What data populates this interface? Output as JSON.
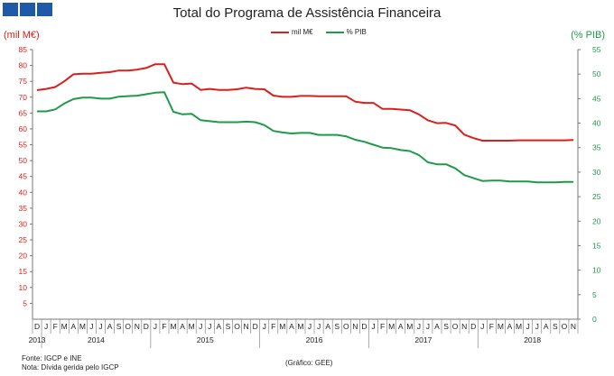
{
  "title": "Total do Programa de Assistência Financeira",
  "colors": {
    "logo": "#1f5aa8",
    "series1": "#d9201c",
    "series2": "#1f9a48"
  },
  "footnotes": {
    "source": "Fonte: IGCP e INE",
    "note": "Nota: Dívida gerida pelo IGCP",
    "credit": "(Gráfico: GEE)"
  },
  "chart_data": {
    "type": "line",
    "title": "Total do Programa de Assistência Financeira",
    "ylabel_left": "(mil M€)",
    "ylabel_right": "(% PIB)",
    "ylim_left": [
      0,
      85
    ],
    "ylim_right": [
      0,
      55
    ],
    "yticks_left": [
      "5",
      "10",
      "15",
      "20",
      "25",
      "30",
      "35",
      "40",
      "45",
      "50",
      "55",
      "60",
      "65",
      "70",
      "75",
      "80",
      "85"
    ],
    "yticks_right": [
      "0",
      "5",
      "10",
      "15",
      "20",
      "25",
      "30",
      "35",
      "40",
      "45",
      "50",
      "55"
    ],
    "months": [
      "D",
      "J",
      "F",
      "M",
      "A",
      "M",
      "J",
      "J",
      "A",
      "S",
      "O",
      "N",
      "D",
      "J",
      "F",
      "M",
      "A",
      "M",
      "J",
      "J",
      "A",
      "S",
      "O",
      "N",
      "D",
      "J",
      "F",
      "M",
      "A",
      "M",
      "J",
      "J",
      "A",
      "S",
      "O",
      "N",
      "D",
      "J",
      "F",
      "M",
      "A",
      "M",
      "J",
      "J",
      "A",
      "S",
      "O",
      "N",
      "D",
      "J",
      "F",
      "M",
      "A",
      "M",
      "J",
      "J",
      "A",
      "S",
      "O",
      "N"
    ],
    "years": [
      {
        "label": "2013",
        "index": 0
      },
      {
        "label": "2014",
        "index": 6.5
      },
      {
        "label": "2015",
        "index": 18.5
      },
      {
        "label": "2016",
        "index": 30.5
      },
      {
        "label": "2017",
        "index": 42.5
      },
      {
        "label": "2018",
        "index": 54.5
      }
    ],
    "legend_position": "top-center",
    "series": [
      {
        "name": "mil M€",
        "axis": "left",
        "values": [
          72.2,
          72.6,
          73.2,
          75.0,
          77.2,
          77.4,
          77.4,
          77.7,
          77.9,
          78.4,
          78.4,
          78.7,
          79.2,
          80.4,
          80.4,
          74.6,
          74.1,
          74.3,
          72.3,
          72.6,
          72.3,
          72.3,
          72.5,
          73.0,
          72.6,
          72.5,
          70.5,
          70.1,
          70.1,
          70.4,
          70.4,
          70.3,
          70.3,
          70.3,
          70.3,
          68.6,
          68.2,
          68.2,
          66.3,
          66.3,
          66.1,
          65.9,
          64.6,
          62.7,
          61.8,
          61.9,
          61.1,
          58.2,
          57.1,
          56.3,
          56.3,
          56.3,
          56.3,
          56.4,
          56.4,
          56.4,
          56.4,
          56.4,
          56.4,
          56.5
        ]
      },
      {
        "name": "% PIB",
        "axis": "right",
        "values": [
          42.4,
          42.4,
          42.8,
          44.0,
          44.9,
          45.2,
          45.2,
          45.0,
          45.0,
          45.4,
          45.5,
          45.6,
          45.9,
          46.2,
          46.3,
          42.3,
          41.8,
          41.9,
          40.6,
          40.4,
          40.2,
          40.2,
          40.2,
          40.3,
          40.2,
          39.6,
          38.4,
          38.1,
          37.9,
          38.0,
          38.0,
          37.6,
          37.6,
          37.6,
          37.3,
          36.6,
          36.2,
          35.6,
          35.0,
          34.9,
          34.5,
          34.3,
          33.5,
          32.0,
          31.6,
          31.6,
          30.8,
          29.4,
          28.8,
          28.2,
          28.3,
          28.3,
          28.1,
          28.1,
          28.1,
          27.9,
          27.9,
          27.9,
          28.0,
          28.0
        ]
      }
    ]
  }
}
